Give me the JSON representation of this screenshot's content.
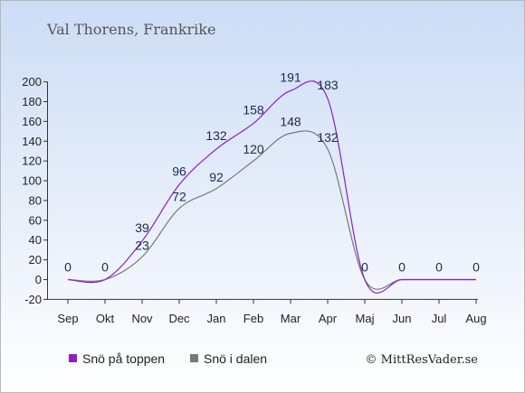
{
  "title": "Val Thorens, Frankrike",
  "credit": "© MittResVader.se",
  "colors": {
    "series_top": "#8a1fc8",
    "series_valley": "#787878",
    "background_top": "#ccdcf5",
    "background_bottom": "#ffffff"
  },
  "chart_data": {
    "type": "line",
    "categories": [
      "Sep",
      "Okt",
      "Nov",
      "Dec",
      "Jan",
      "Feb",
      "Mar",
      "Apr",
      "Maj",
      "Jun",
      "Jul",
      "Aug"
    ],
    "series": [
      {
        "name": "Snö på toppen",
        "values": [
          0,
          0,
          39,
          96,
          132,
          158,
          191,
          183,
          0,
          0,
          0,
          0
        ],
        "labels": [
          "0",
          "0",
          "39",
          "96",
          "132",
          "158",
          "191",
          "183",
          "0",
          "0",
          "0",
          "0"
        ]
      },
      {
        "name": "Snö i dalen",
        "values": [
          0,
          0,
          23,
          72,
          92,
          120,
          148,
          132,
          0,
          0,
          0,
          0
        ],
        "labels": [
          "",
          "",
          "23",
          "72",
          "92",
          "120",
          "148",
          "132",
          "",
          "",
          "",
          ""
        ]
      }
    ],
    "ylim": [
      -20,
      200
    ],
    "yticks": [
      "-20",
      "0",
      "20",
      "40",
      "60",
      "80",
      "100",
      "120",
      "140",
      "160",
      "180",
      "200"
    ],
    "grid": false,
    "legend_position": "bottom-left"
  }
}
